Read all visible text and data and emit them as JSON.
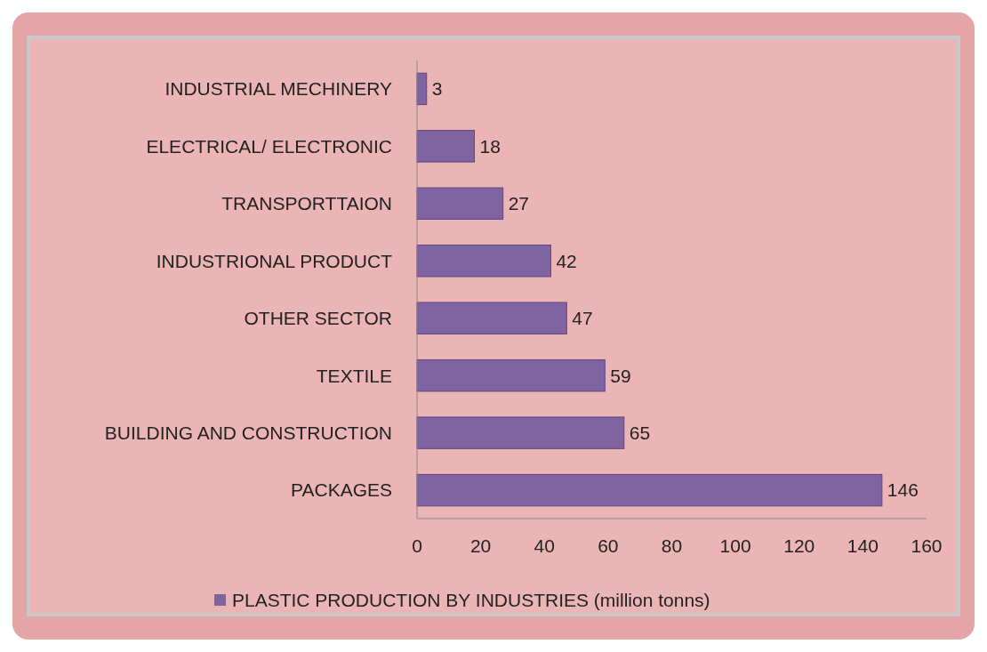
{
  "chart_data": {
    "type": "bar",
    "orientation": "horizontal",
    "categories": [
      "INDUSTRIAL MECHINERY",
      "ELECTRICAL/ ELECTRONIC",
      "TRANSPORTTAION",
      "INDUSTRIONAL PRODUCT",
      "OTHER SECTOR",
      "TEXTILE",
      "BUILDING AND CONSTRUCTION",
      "PACKAGES"
    ],
    "series": [
      {
        "name": "PLASTIC PRODUCTION BY INDUSTRIES (million tonns)",
        "color": "#8064a2",
        "values": [
          3,
          18,
          27,
          42,
          47,
          59,
          65,
          146
        ]
      }
    ],
    "xlim": [
      0,
      160
    ],
    "xticks": [
      0,
      20,
      40,
      60,
      80,
      100,
      120,
      140,
      160
    ],
    "data_labels": true,
    "legend": "bottom",
    "grid": false
  }
}
